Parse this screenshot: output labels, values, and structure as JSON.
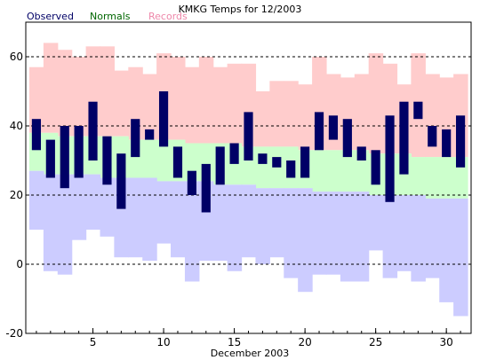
{
  "chart_data": {
    "type": "bar",
    "title": "KMKG Temps for 12/2003",
    "xlabel": "December 2003",
    "ylabel": "",
    "ylim": [
      -20,
      70
    ],
    "xlim": [
      0.25,
      31.75
    ],
    "yticks": [
      -20,
      0,
      20,
      40,
      60
    ],
    "xticks": [
      5,
      10,
      15,
      20,
      25,
      30
    ],
    "y_gridlines": [
      0,
      20,
      40,
      60
    ],
    "grid": "dashed horizontal",
    "legend": {
      "placement": "top-left",
      "entries": [
        {
          "name": "Observed",
          "color": "#000066"
        },
        {
          "name": "Normals",
          "color": "#006600"
        },
        {
          "name": "Records",
          "color": "#ee88aa"
        }
      ]
    },
    "colors": {
      "records": "#ffcccc",
      "normals": "#ccffcc",
      "record_low_band": "#ccccff",
      "observed": "#000066"
    },
    "days": [
      1,
      2,
      3,
      4,
      5,
      6,
      7,
      8,
      9,
      10,
      11,
      12,
      13,
      14,
      15,
      16,
      17,
      18,
      19,
      20,
      21,
      22,
      23,
      24,
      25,
      26,
      27,
      28,
      29,
      30,
      31
    ],
    "observed_high": [
      42,
      36,
      40,
      40,
      47,
      37,
      32,
      42,
      39,
      50,
      34,
      27,
      29,
      34,
      35,
      44,
      32,
      31,
      30,
      34,
      44,
      43,
      42,
      34,
      33,
      43,
      47,
      47,
      40,
      39,
      43
    ],
    "observed_low": [
      33,
      25,
      22,
      25,
      30,
      23,
      16,
      31,
      36,
      34,
      25,
      20,
      15,
      23,
      29,
      30,
      29,
      28,
      25,
      25,
      33,
      36,
      31,
      30,
      23,
      18,
      26,
      42,
      34,
      31,
      28
    ],
    "normal_high": [
      38,
      38,
      37,
      37,
      37,
      37,
      37,
      36,
      36,
      36,
      36,
      35,
      35,
      35,
      35,
      34,
      34,
      34,
      34,
      33,
      33,
      33,
      33,
      33,
      32,
      32,
      32,
      31,
      31,
      31,
      31
    ],
    "normal_low": [
      27,
      26,
      26,
      26,
      26,
      25,
      25,
      25,
      25,
      24,
      24,
      24,
      24,
      23,
      23,
      23,
      22,
      22,
      22,
      22,
      21,
      21,
      21,
      21,
      20,
      20,
      20,
      20,
      19,
      19,
      19
    ],
    "record_high": [
      57,
      64,
      62,
      60,
      63,
      63,
      56,
      57,
      55,
      61,
      60,
      57,
      60,
      57,
      58,
      58,
      50,
      53,
      53,
      52,
      60,
      55,
      54,
      55,
      61,
      58,
      52,
      61,
      55,
      54,
      55
    ],
    "record_low": [
      10,
      -2,
      -3,
      7,
      10,
      8,
      2,
      2,
      1,
      6,
      2,
      -5,
      1,
      1,
      -2,
      2,
      0,
      2,
      -4,
      -8,
      -3,
      -3,
      -5,
      -5,
      4,
      -4,
      -2,
      -5,
      -4,
      -11,
      -15
    ]
  }
}
